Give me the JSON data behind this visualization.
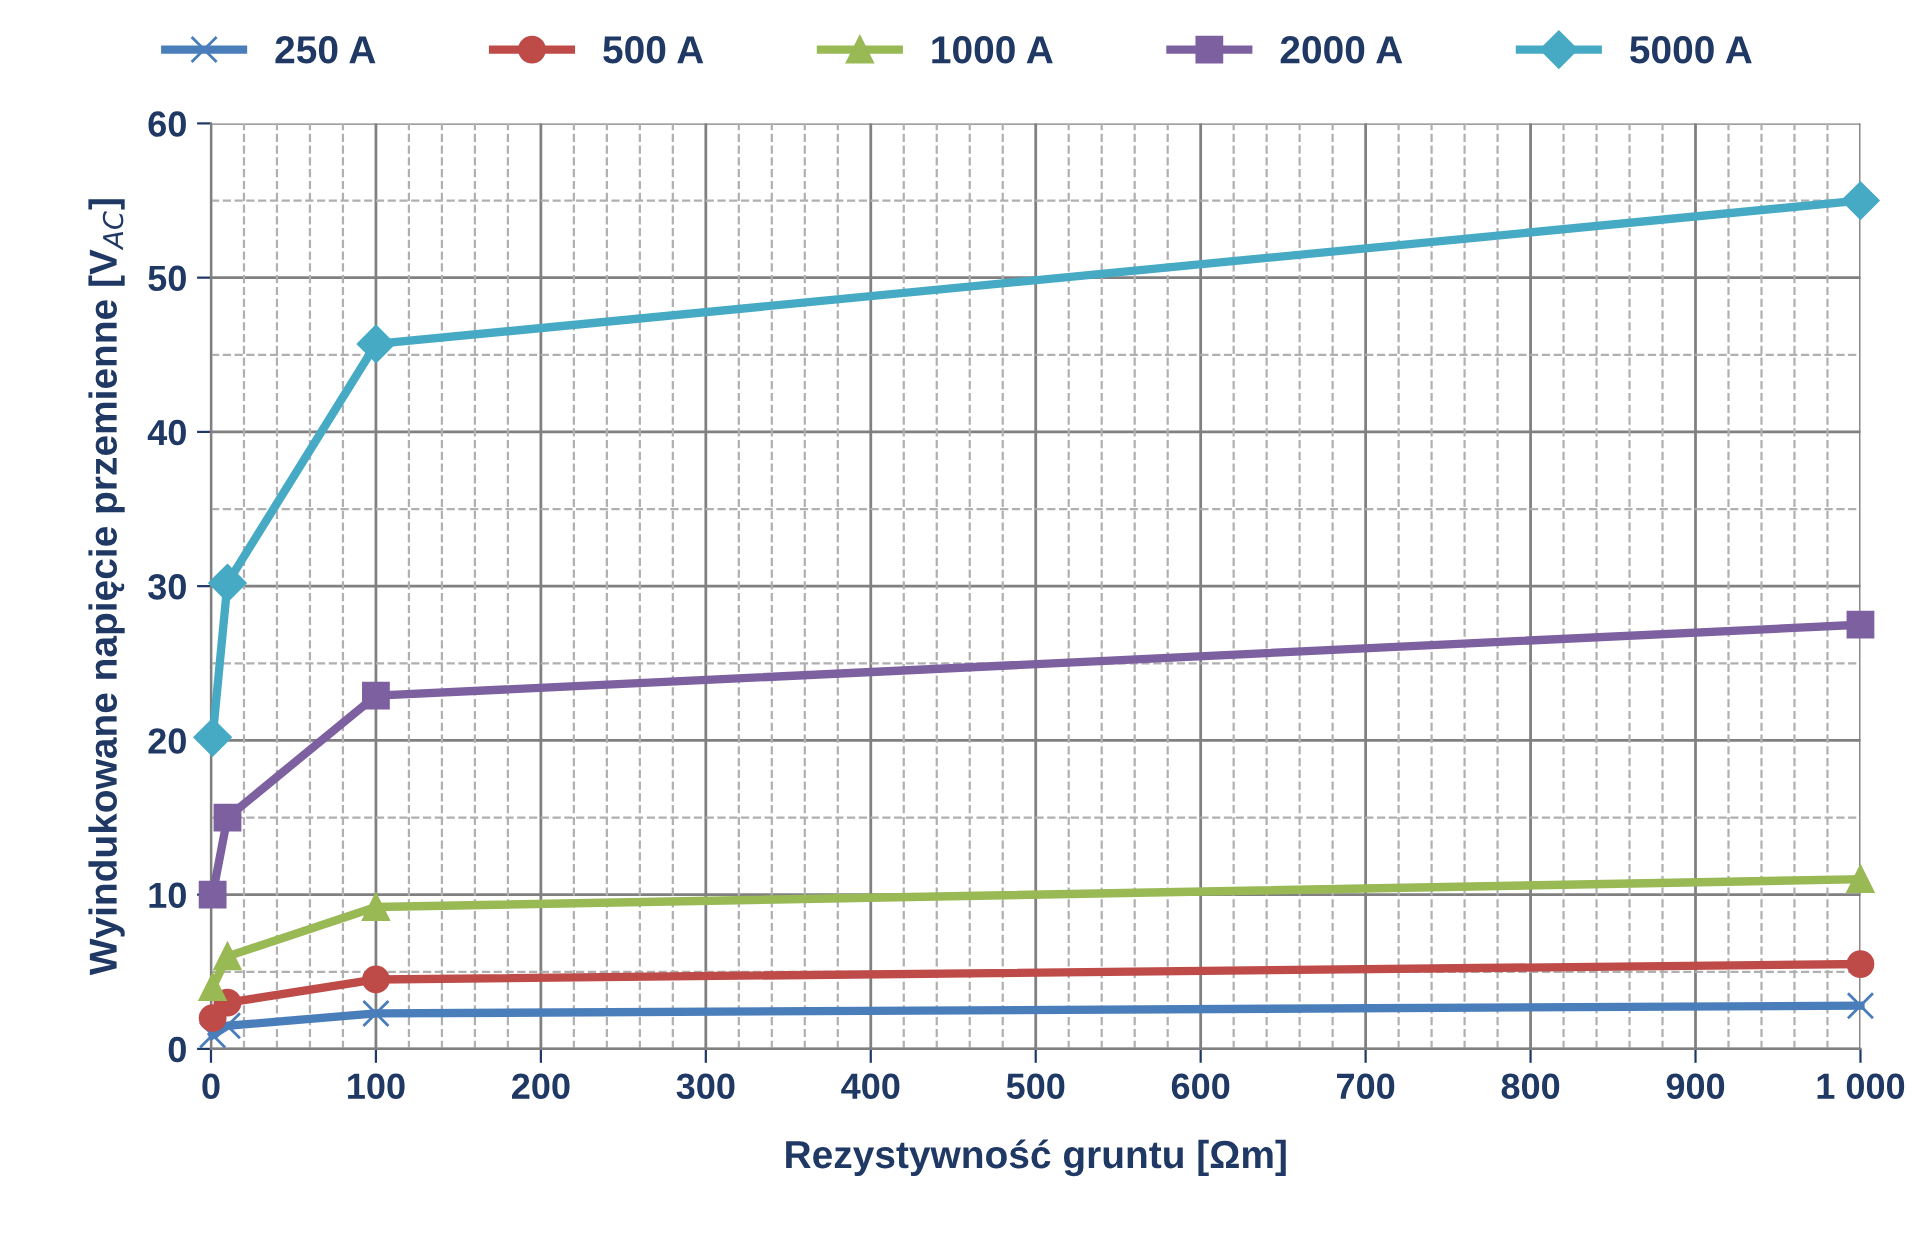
{
  "chart_data": {
    "type": "line",
    "xlabel": "Rezystywność gruntu [Ωm]",
    "ylabel": "Wyindukowane napięcie przemienne [V$_{AC}$]",
    "x": [
      1,
      10,
      100,
      1000
    ],
    "series": [
      {
        "name": "250 A",
        "color": "#4a7ebb",
        "marker": "cross",
        "values": [
          0.9,
          1.5,
          2.3,
          2.8
        ]
      },
      {
        "name": "500 A",
        "color": "#be4b48",
        "marker": "circle",
        "values": [
          2,
          3,
          4.5,
          5.5
        ]
      },
      {
        "name": "1000 A",
        "color": "#98b954",
        "marker": "triangle",
        "values": [
          4,
          6,
          9.2,
          11
        ]
      },
      {
        "name": "2000 A",
        "color": "#7d60a0",
        "marker": "square",
        "values": [
          10,
          15,
          22.9,
          27.5
        ]
      },
      {
        "name": "5000 A",
        "color": "#46aac5",
        "marker": "diamond",
        "values": [
          20.2,
          30.2,
          45.7,
          55
        ]
      }
    ],
    "xlim": [
      0,
      1000
    ],
    "xticks": [
      0,
      100,
      200,
      300,
      400,
      500,
      600,
      700,
      800,
      900,
      {
        "value": 1000,
        "label": "1 000"
      }
    ],
    "ylim": [
      0,
      60
    ],
    "yticks": [
      0,
      10,
      20,
      30,
      40,
      50,
      60
    ],
    "grid": true,
    "legend": "top",
    "line_style": "solid"
  }
}
